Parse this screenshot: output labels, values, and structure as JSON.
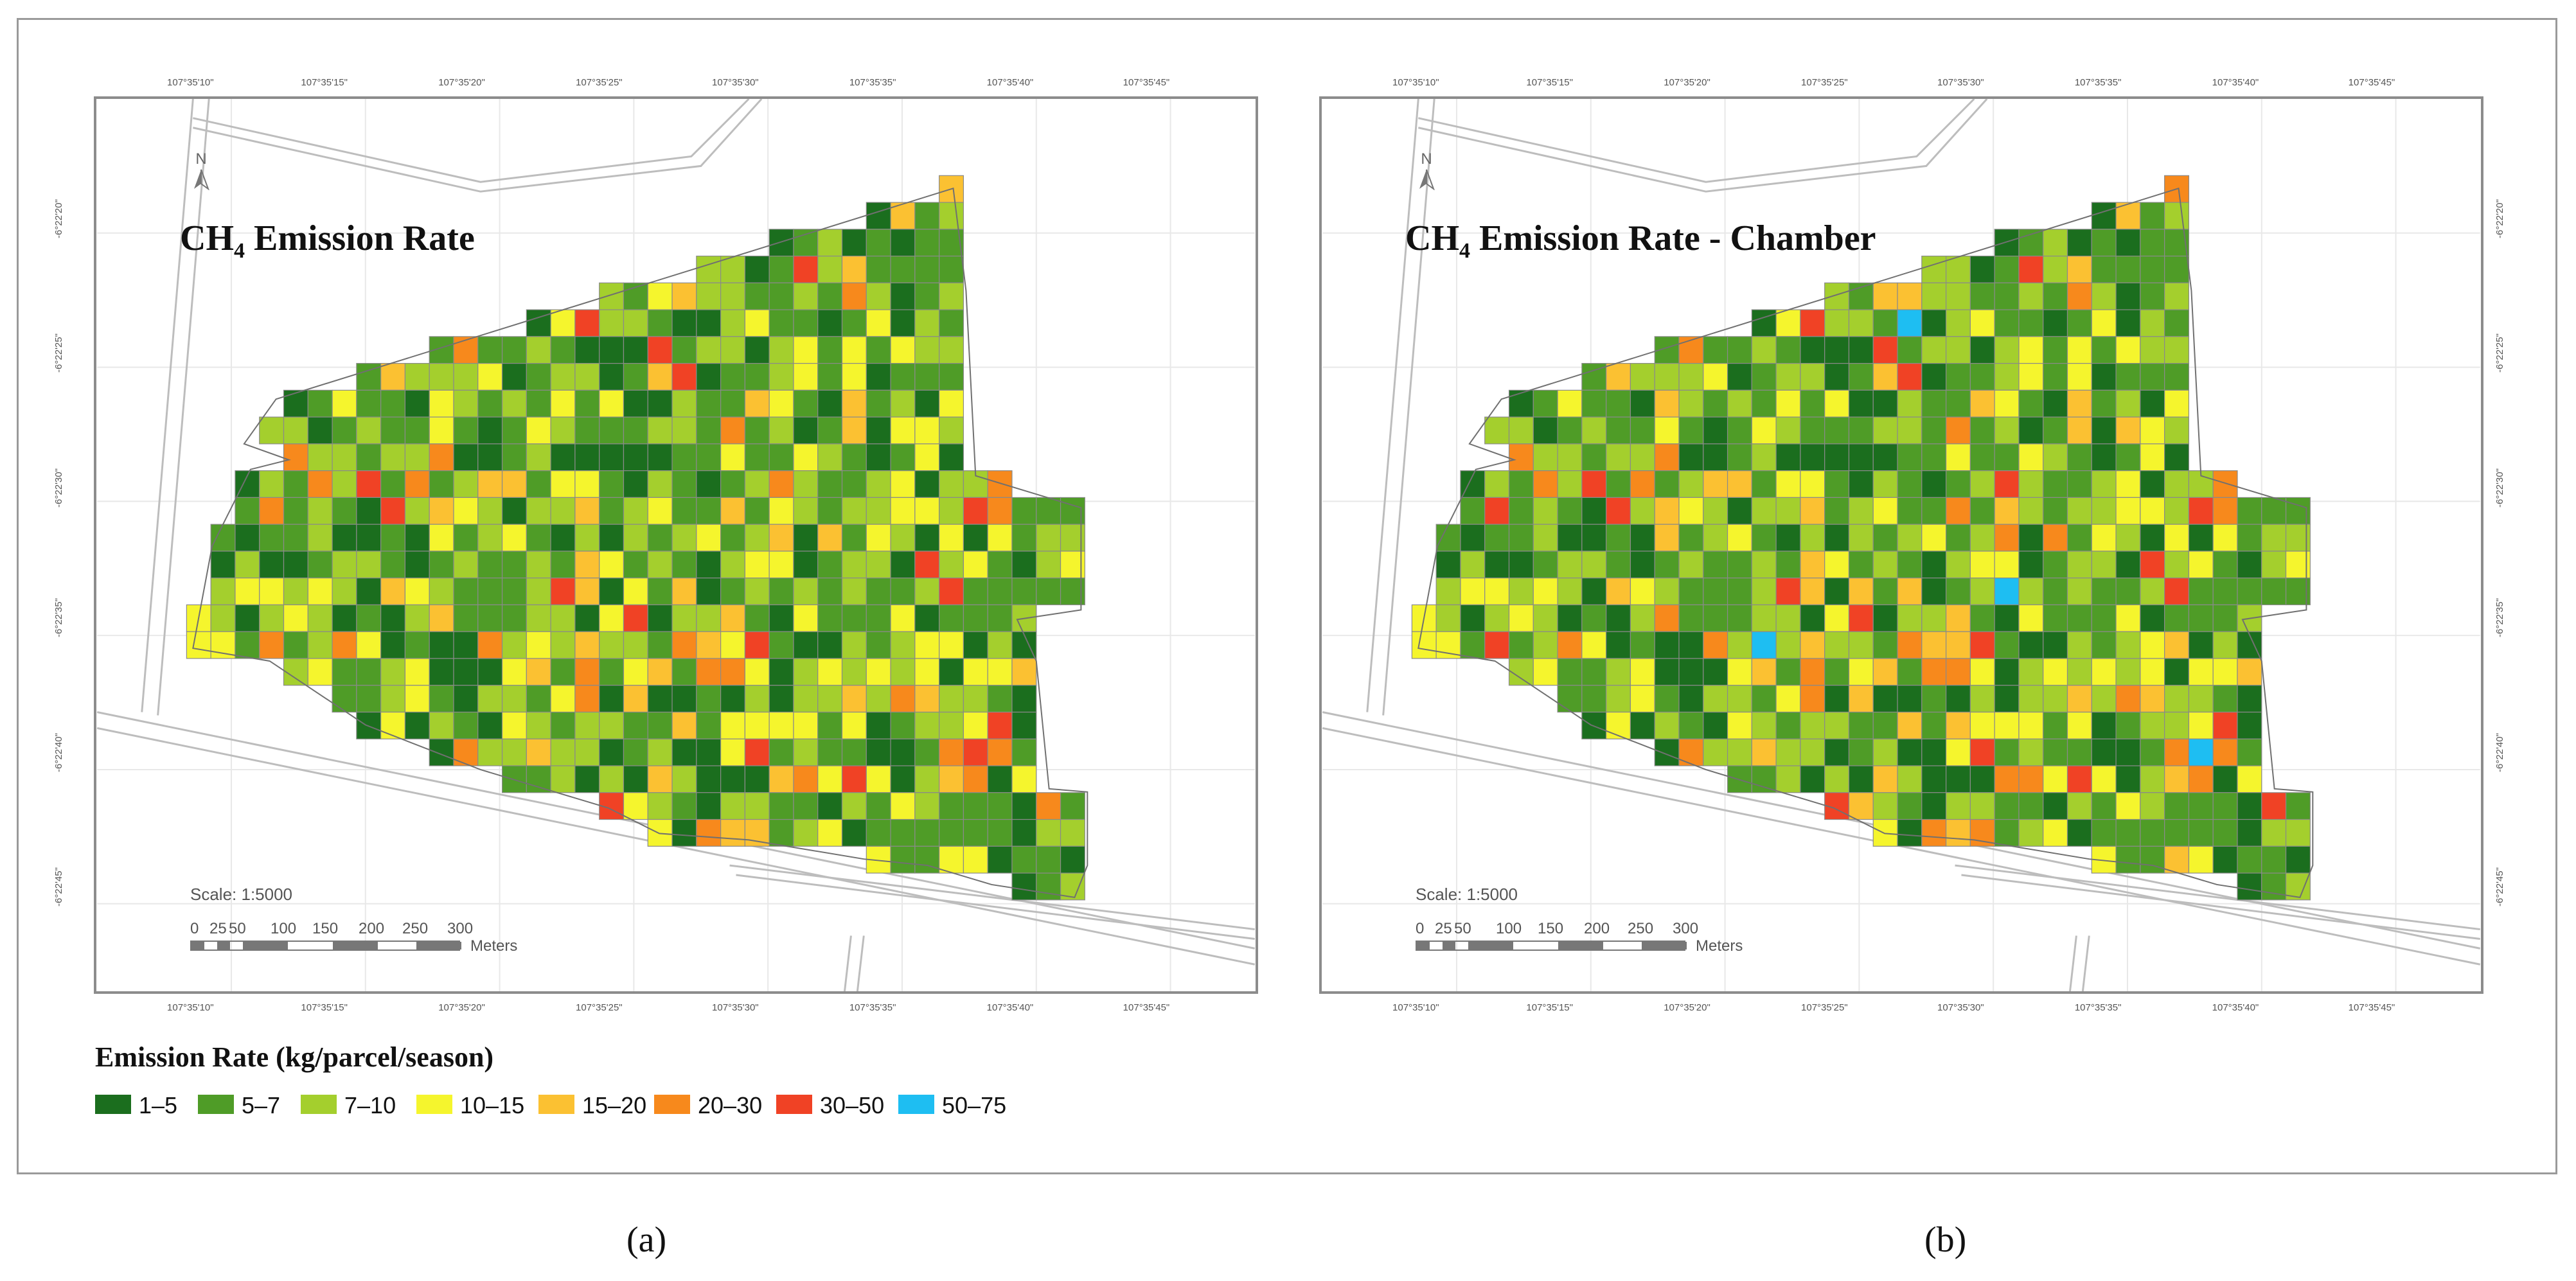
{
  "maps": [
    {
      "id": "a",
      "title": "CH",
      "title_subscript": "4",
      "title_suffix": " Emission Rate",
      "panel_label": "(a)"
    },
    {
      "id": "b",
      "title": "CH",
      "title_subscript": "4",
      "title_suffix": " Emission Rate - Chamber",
      "panel_label": "(b)"
    }
  ],
  "north_label": "N",
  "scale_text": "Scale: 1:5000",
  "scale_ticks": [
    "0",
    "25",
    "50",
    "100",
    "150",
    "200",
    "250",
    "300"
  ],
  "scale_unit": "Meters",
  "longitude_labels": [
    "107°35'10\"",
    "107°35'15\"",
    "107°35'20\"",
    "107°35'25\"",
    "107°35'30\"",
    "107°35'35\"",
    "107°35'40\"",
    "107°35'45\""
  ],
  "latitude_labels": [
    "-6°22'20\"",
    "-6°22'25\"",
    "-6°22'30\"",
    "-6°22'35\"",
    "-6°22'40\"",
    "-6°22'45\""
  ],
  "legend": {
    "title": "Emission Rate (kg/parcel/season)",
    "classes": [
      {
        "label": "1–5",
        "color": "#1b6e1e"
      },
      {
        "label": "5–7",
        "color": "#4f9c27"
      },
      {
        "label": "7–10",
        "color": "#a4cf2d"
      },
      {
        "label": "10–15",
        "color": "#f5f52d"
      },
      {
        "label": "15–20",
        "color": "#fbc132"
      },
      {
        "label": "20–30",
        "color": "#f7891c"
      },
      {
        "label": "30–50",
        "color": "#f04225"
      },
      {
        "label": "50–75",
        "color": "#1ebef2"
      }
    ]
  }
}
